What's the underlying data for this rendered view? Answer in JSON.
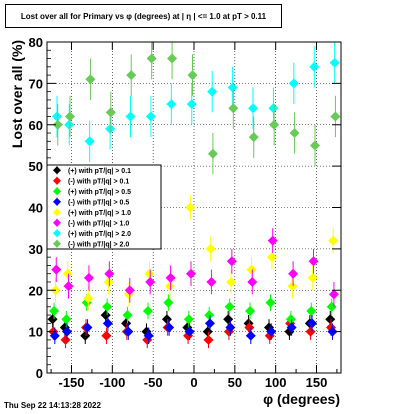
{
  "chart_data": {
    "type": "scatter",
    "title": "Lost over all for Primary vs φ (degrees) at | η | <= 1.0 at pT > 0.11",
    "xlabel": "φ (degrees)",
    "ylabel": "Lost over all (%)",
    "xlim": [
      -180,
      180
    ],
    "ylim": [
      0,
      80
    ],
    "x_ticks": [
      -150,
      -100,
      -50,
      0,
      50,
      100,
      150
    ],
    "y_ticks": [
      0,
      10,
      20,
      30,
      40,
      50,
      60,
      70,
      80
    ],
    "grid": true,
    "legend_position": "left-middle",
    "marker": "diamond with vertical error bar",
    "x_bin_centers": [
      -170,
      -155,
      -130,
      -105,
      -80,
      -55,
      -30,
      -5,
      20,
      45,
      70,
      95,
      120,
      145,
      170
    ],
    "series": [
      {
        "name": "(+) with pT/|q| > 0.1",
        "color": "#000000",
        "y": [
          13,
          11,
          9,
          14,
          12,
          10,
          13,
          11,
          10,
          13,
          12,
          11,
          10,
          12,
          13
        ],
        "yerr": [
          2,
          2,
          2,
          2,
          2,
          2,
          2,
          2,
          2,
          2,
          2,
          2,
          2,
          2,
          2
        ]
      },
      {
        "name": "(-) with pT/|q| > 0.1",
        "color": "#ff0000",
        "y": [
          10,
          8,
          11,
          9,
          10,
          8,
          11,
          9,
          8,
          10,
          11,
          9,
          12,
          10,
          11
        ],
        "yerr": [
          2,
          2,
          2,
          2,
          2,
          2,
          2,
          2,
          2,
          2,
          2,
          2,
          2,
          2,
          2
        ]
      },
      {
        "name": "(+) with pT/|q| > 0.5",
        "color": "#00ff00",
        "y": [
          15,
          13,
          17,
          16,
          14,
          15,
          17,
          13,
          14,
          16,
          15,
          17,
          13,
          15,
          16
        ],
        "yerr": [
          2,
          2,
          2,
          2,
          2,
          2,
          2,
          2,
          2,
          2,
          2,
          2,
          2,
          2,
          2
        ]
      },
      {
        "name": "(-) with pT/|q| > 0.5",
        "color": "#0000ff",
        "y": [
          9,
          10,
          11,
          12,
          10,
          9,
          11,
          10,
          12,
          11,
          9,
          10,
          11,
          12,
          10
        ],
        "yerr": [
          2,
          2,
          2,
          2,
          2,
          2,
          2,
          2,
          2,
          2,
          2,
          2,
          2,
          2,
          2
        ]
      },
      {
        "name": "(+) with pT/|q| > 1.0",
        "color": "#ffff00",
        "y": [
          20,
          24,
          18,
          22,
          19,
          24,
          21,
          40,
          30,
          22,
          25,
          28,
          21,
          23,
          32
        ],
        "yerr": [
          3,
          3,
          3,
          3,
          3,
          3,
          3,
          3,
          3,
          3,
          3,
          3,
          3,
          3,
          3
        ]
      },
      {
        "name": "(-) with pT/|q| > 1.0",
        "color": "#ff00ff",
        "y": [
          25,
          21,
          23,
          24,
          20,
          22,
          23,
          24,
          22,
          27,
          22,
          32,
          24,
          27,
          19
        ],
        "yerr": [
          3,
          3,
          3,
          3,
          3,
          3,
          3,
          3,
          3,
          3,
          3,
          3,
          3,
          3,
          3
        ]
      },
      {
        "name": "(+) with pT/|q| > 2.0",
        "color": "#00ffff",
        "y": [
          62,
          60,
          56,
          59,
          62,
          62,
          65,
          65,
          68,
          69,
          64,
          64,
          70,
          74,
          75
        ],
        "yerr": [
          5,
          5,
          5,
          5,
          5,
          5,
          5,
          5,
          5,
          5,
          5,
          5,
          5,
          5,
          5
        ]
      },
      {
        "name": "(-) with pT/|q| > 2.0",
        "color": "#66cc55",
        "y": [
          60,
          62,
          71,
          63,
          72,
          76,
          76,
          72,
          53,
          64,
          57,
          60,
          58,
          55,
          62
        ],
        "yerr": [
          5,
          5,
          5,
          5,
          5,
          5,
          5,
          5,
          5,
          5,
          5,
          5,
          5,
          5,
          5
        ]
      }
    ]
  },
  "footer": {
    "timestamp": "Thu Sep 22 14:13:28 2022"
  }
}
